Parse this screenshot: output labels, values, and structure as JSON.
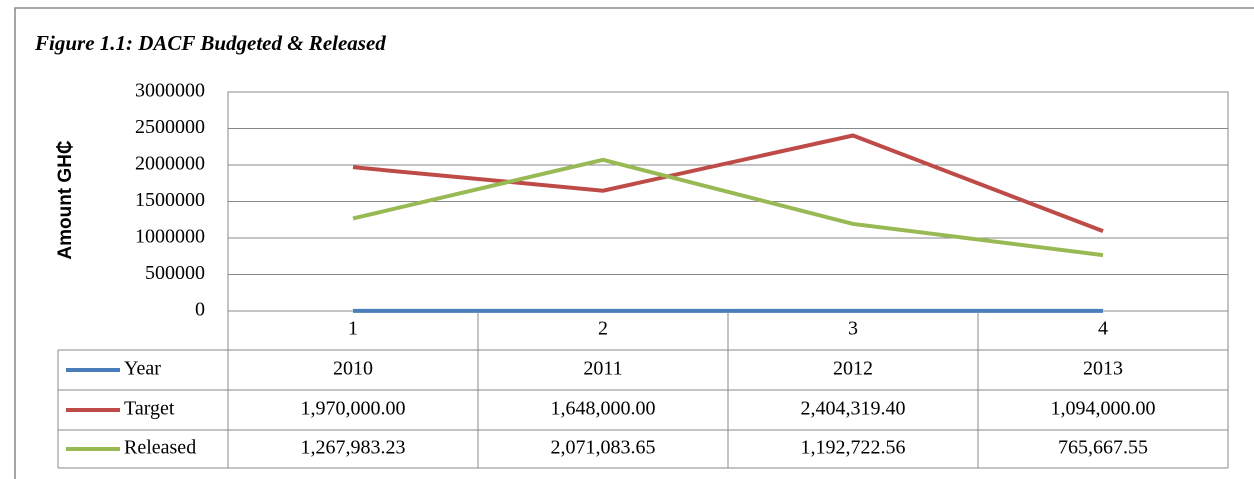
{
  "chart_data": {
    "type": "line",
    "title": "Figure 1.1: DACF Budgeted & Released",
    "y_label": "Amount GH₵",
    "categories": [
      "1",
      "2",
      "3",
      "4"
    ],
    "series": [
      {
        "name": "Year",
        "color": "#4a7ebb",
        "values": [
          2010,
          2011,
          2012,
          2013
        ]
      },
      {
        "name": "Target",
        "color": "#be4b48",
        "values": [
          1970000,
          1648000,
          2404319.4,
          1094000
        ],
        "value_labels": [
          "1,970,000.00",
          "1,648,000.00",
          "2,404,319.40",
          "1,094,000.00"
        ]
      },
      {
        "name": "Released",
        "color": "#98b954",
        "values": [
          1267983.23,
          2071083.65,
          1192722.56,
          765667.55
        ],
        "value_labels": [
          "1,267,983.23",
          "2,071,083.65",
          "1,192,722.56",
          "765,667.55"
        ]
      }
    ],
    "ylim": [
      0,
      3000000
    ],
    "yticks": [
      0,
      500000,
      1000000,
      1500000,
      2000000,
      2500000,
      3000000
    ],
    "grid": true,
    "data_table": true
  }
}
